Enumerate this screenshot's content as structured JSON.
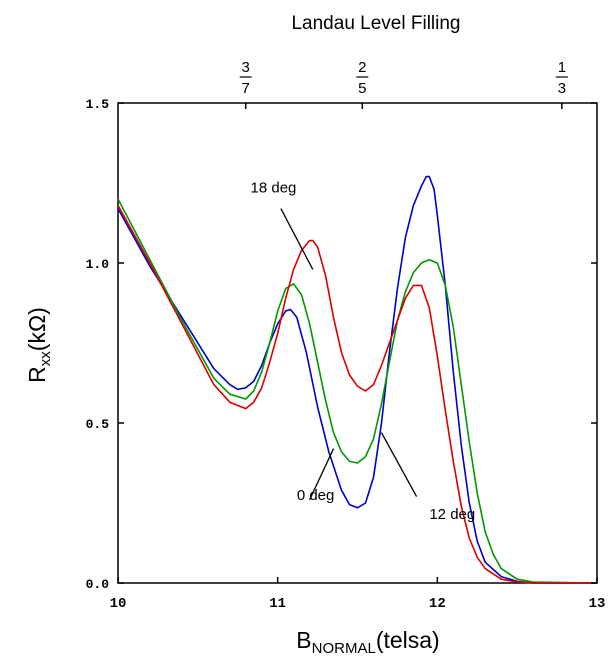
{
  "chart_data": {
    "type": "line",
    "xlabel_main": "B",
    "xlabel_sub": "NORMAL",
    "xlabel_suffix": "(telsa)",
    "ylabel_main": "R",
    "ylabel_sub": "xx",
    "ylabel_suffix": "(kΩ)",
    "top_axis_title": "Landau Level Filling",
    "xlim": [
      10,
      13
    ],
    "ylim": [
      0,
      1.5
    ],
    "x_ticks": [
      {
        "value": 10,
        "label": "10"
      },
      {
        "value": 11,
        "label": "11"
      },
      {
        "value": 12,
        "label": "12"
      },
      {
        "value": 13,
        "label": "13"
      }
    ],
    "y_ticks": [
      {
        "value": 0,
        "label": "0.0"
      },
      {
        "value": 0.5,
        "label": "0.5"
      },
      {
        "value": 1.0,
        "label": "1.0"
      },
      {
        "value": 1.5,
        "label": "1.5"
      }
    ],
    "top_ticks": [
      {
        "x": 10.8,
        "num": "3",
        "den": "7"
      },
      {
        "x": 11.53,
        "num": "2",
        "den": "5"
      },
      {
        "x": 12.78,
        "num": "1",
        "den": "3"
      }
    ],
    "series": [
      {
        "name": "0 deg",
        "color": "#0000cc",
        "x": [
          10.0,
          10.2,
          10.4,
          10.6,
          10.7,
          10.75,
          10.8,
          10.85,
          10.9,
          10.95,
          11.0,
          11.05,
          11.08,
          11.12,
          11.18,
          11.25,
          11.32,
          11.4,
          11.45,
          11.5,
          11.55,
          11.6,
          11.65,
          11.7,
          11.75,
          11.8,
          11.85,
          11.9,
          11.93,
          11.95,
          11.98,
          12.0,
          12.05,
          12.1,
          12.15,
          12.2,
          12.25,
          12.3,
          12.4,
          12.5,
          12.6,
          13.0
        ],
        "y": [
          1.17,
          0.99,
          0.83,
          0.67,
          0.62,
          0.605,
          0.61,
          0.63,
          0.68,
          0.75,
          0.81,
          0.85,
          0.855,
          0.83,
          0.72,
          0.55,
          0.41,
          0.29,
          0.245,
          0.235,
          0.25,
          0.33,
          0.5,
          0.72,
          0.92,
          1.08,
          1.18,
          1.24,
          1.27,
          1.27,
          1.23,
          1.15,
          0.93,
          0.66,
          0.43,
          0.25,
          0.13,
          0.065,
          0.02,
          0.005,
          0.0,
          0.0
        ]
      },
      {
        "name": "12 deg",
        "color": "#009900",
        "x": [
          10.0,
          10.2,
          10.4,
          10.6,
          10.7,
          10.8,
          10.85,
          10.9,
          10.95,
          11.0,
          11.05,
          11.1,
          11.15,
          11.2,
          11.25,
          11.3,
          11.35,
          11.4,
          11.45,
          11.5,
          11.55,
          11.6,
          11.65,
          11.7,
          11.75,
          11.8,
          11.85,
          11.9,
          11.95,
          12.0,
          12.05,
          12.1,
          12.15,
          12.2,
          12.25,
          12.3,
          12.35,
          12.4,
          12.5,
          12.6,
          13.0
        ],
        "y": [
          1.2,
          1.01,
          0.82,
          0.64,
          0.59,
          0.575,
          0.6,
          0.66,
          0.75,
          0.85,
          0.92,
          0.935,
          0.9,
          0.81,
          0.69,
          0.57,
          0.47,
          0.41,
          0.38,
          0.375,
          0.395,
          0.45,
          0.56,
          0.69,
          0.82,
          0.91,
          0.97,
          1.0,
          1.01,
          1.0,
          0.93,
          0.8,
          0.62,
          0.44,
          0.28,
          0.16,
          0.09,
          0.045,
          0.012,
          0.003,
          0.0
        ]
      },
      {
        "name": "18 deg",
        "color": "#dd0000",
        "x": [
          10.0,
          10.2,
          10.4,
          10.6,
          10.7,
          10.8,
          10.85,
          10.9,
          10.95,
          11.0,
          11.05,
          11.1,
          11.15,
          11.2,
          11.22,
          11.25,
          11.3,
          11.35,
          11.4,
          11.45,
          11.5,
          11.55,
          11.6,
          11.65,
          11.7,
          11.75,
          11.8,
          11.85,
          11.9,
          11.95,
          12.0,
          12.05,
          12.1,
          12.15,
          12.2,
          12.25,
          12.3,
          12.4,
          12.5,
          12.6,
          13.0
        ],
        "y": [
          1.18,
          1.0,
          0.81,
          0.62,
          0.565,
          0.545,
          0.565,
          0.61,
          0.69,
          0.78,
          0.89,
          0.98,
          1.04,
          1.07,
          1.07,
          1.05,
          0.96,
          0.83,
          0.72,
          0.65,
          0.615,
          0.6,
          0.62,
          0.68,
          0.75,
          0.82,
          0.89,
          0.93,
          0.93,
          0.86,
          0.71,
          0.54,
          0.38,
          0.24,
          0.14,
          0.08,
          0.045,
          0.012,
          0.003,
          0.0,
          0.0
        ]
      }
    ],
    "annotations": [
      {
        "text": "18 deg",
        "text_x": 10.83,
        "text_y": 1.22,
        "line": [
          [
            11.02,
            1.17
          ],
          [
            11.22,
            0.98
          ]
        ]
      },
      {
        "text": "0 deg",
        "text_x": 11.12,
        "text_y": 0.26,
        "line": [
          [
            11.2,
            0.26
          ],
          [
            11.35,
            0.42
          ]
        ]
      },
      {
        "text": "12 deg",
        "text_x": 11.95,
        "text_y": 0.2,
        "line": [
          [
            11.87,
            0.27
          ],
          [
            11.65,
            0.47
          ]
        ]
      }
    ]
  }
}
